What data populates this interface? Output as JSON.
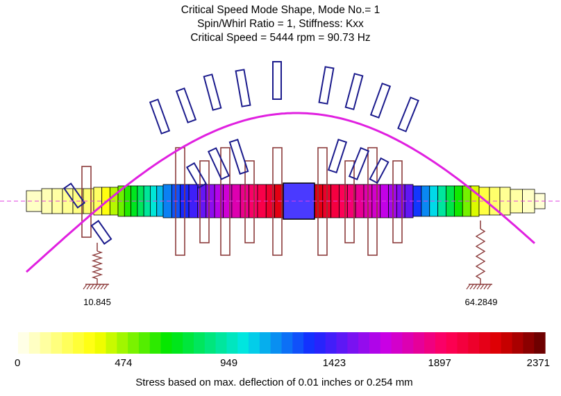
{
  "title": {
    "line1": "Critical Speed Mode Shape, Mode No.= 1",
    "line2": "Spin/Whirl Ratio = 1, Stiffness: Kxx",
    "line3": "Critical Speed = 5444 rpm = 90.73 Hz"
  },
  "bearings": [
    {
      "label": "10.845"
    },
    {
      "label": "64.2849"
    }
  ],
  "colorbar": {
    "tick_labels": [
      "0",
      "474",
      "949",
      "1423",
      "1897",
      "2371"
    ],
    "caption": "Stress based on max. deflection of 0.01 inches or 0.254 mm"
  },
  "colors": {
    "mode_shape": "#e020e0",
    "centerline": "#e040e0",
    "disk_outline": "#8b3a3a",
    "blade_outline": "#1a1a8c",
    "spring": "#8b3a3a",
    "hub": "#4a3aff"
  }
}
